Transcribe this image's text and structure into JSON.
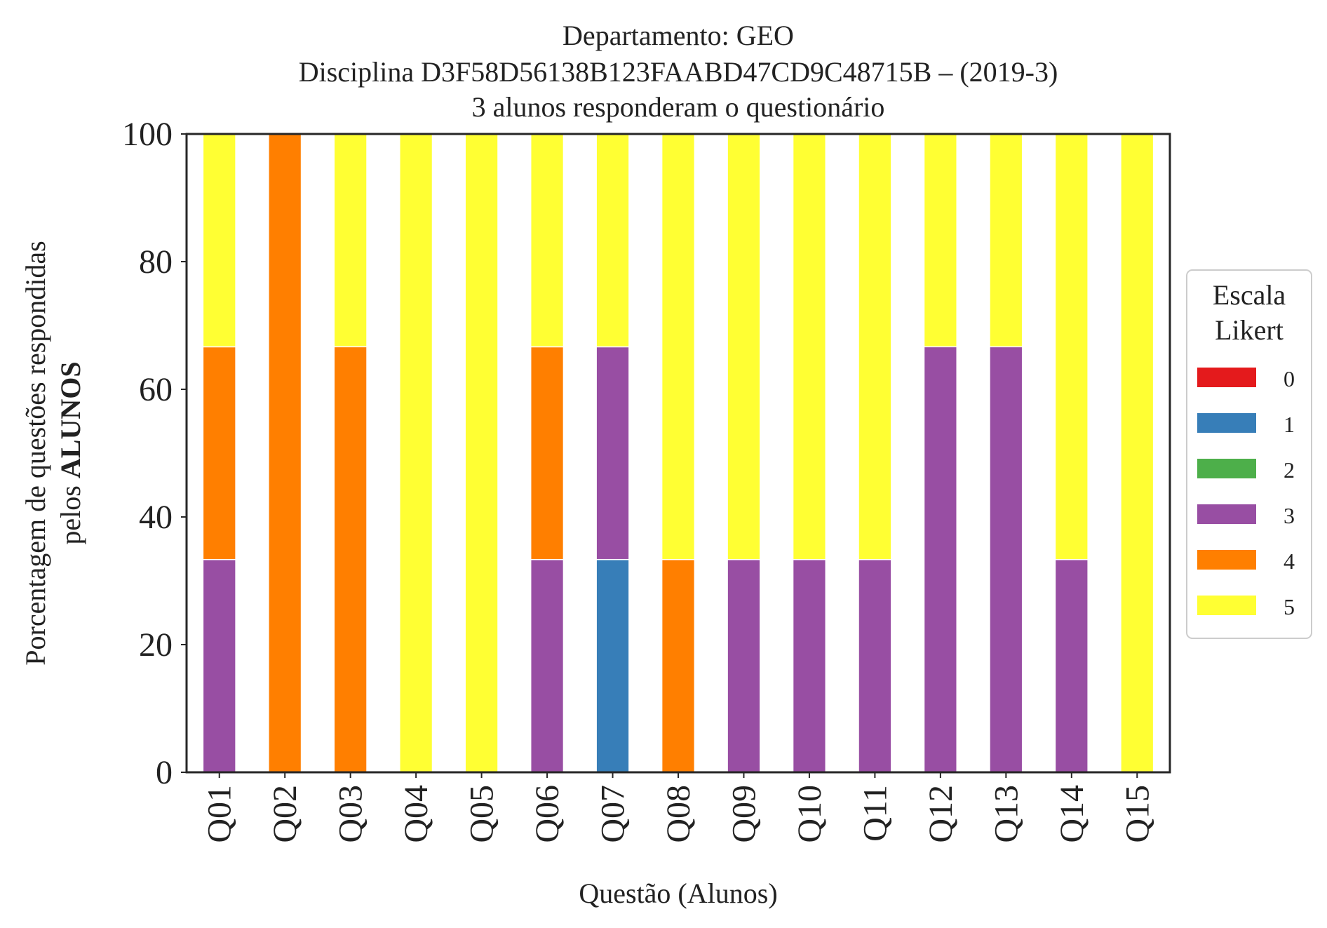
{
  "chart_data": {
    "type": "bar",
    "stacked": true,
    "title_lines": [
      "Departamento: GEO",
      "Disciplina D3F58D56138B123FAABD47CD9C48715B – (2019-3)",
      "3 alunos responderam o questionário"
    ],
    "ylabel_line1": "Porcentagem de questões respondidas",
    "ylabel_line2_prefix": "pelos ",
    "ylabel_line2_bold": "ALUNOS",
    "xlabel": "Questão (Alunos)",
    "ylim": [
      0,
      100
    ],
    "yticks": [
      "0",
      "20",
      "40",
      "60",
      "80",
      "100"
    ],
    "grid": false,
    "legend": {
      "title_lines": [
        "Escala",
        "Likert"
      ],
      "placement": "center-right-outside"
    },
    "categories": [
      "Q01",
      "Q02",
      "Q03",
      "Q04",
      "Q05",
      "Q06",
      "Q07",
      "Q08",
      "Q09",
      "Q10",
      "Q11",
      "Q12",
      "Q13",
      "Q14",
      "Q15"
    ],
    "series": [
      {
        "name": "0",
        "color": "#e41a1c",
        "values": [
          0,
          0,
          0,
          0,
          0,
          0,
          0,
          0,
          0,
          0,
          0,
          0,
          0,
          0,
          0
        ]
      },
      {
        "name": "1",
        "color": "#377eb8",
        "values": [
          0,
          0,
          0,
          0,
          0,
          0,
          33.33,
          0,
          0,
          0,
          0,
          0,
          0,
          0,
          0
        ]
      },
      {
        "name": "2",
        "color": "#4daf4a",
        "values": [
          0,
          0,
          0,
          0,
          0,
          0,
          0,
          0,
          0,
          0,
          0,
          0,
          0,
          0,
          0
        ]
      },
      {
        "name": "3",
        "color": "#984ea3",
        "values": [
          33.33,
          0,
          0,
          0,
          0,
          33.33,
          33.33,
          0,
          33.33,
          33.33,
          33.33,
          66.67,
          66.67,
          33.33,
          0
        ]
      },
      {
        "name": "4",
        "color": "#ff7f00",
        "values": [
          33.33,
          100,
          66.67,
          0,
          0,
          33.33,
          0,
          33.33,
          0,
          0,
          0,
          0,
          0,
          0,
          0
        ]
      },
      {
        "name": "5",
        "color": "#ffff33",
        "values": [
          33.33,
          0,
          33.33,
          100,
          100,
          33.33,
          33.33,
          66.67,
          66.67,
          66.67,
          66.67,
          33.33,
          33.33,
          66.67,
          100
        ]
      }
    ]
  }
}
